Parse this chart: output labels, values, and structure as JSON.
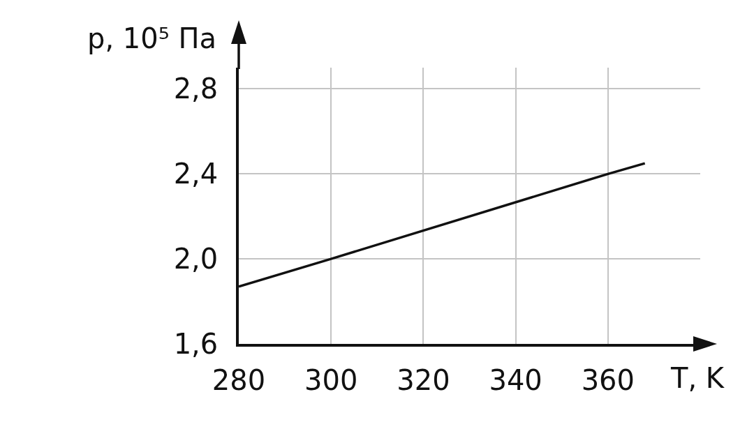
{
  "chart_data": {
    "type": "line",
    "xlabel": "T, K",
    "ylabel": "p, 10⁵ Па",
    "x": [
      280,
      300,
      360,
      368
    ],
    "series": [
      {
        "color": "#111111",
        "values": [
          1.87,
          2.0,
          2.4,
          2.45
        ]
      }
    ],
    "xlim": [
      280,
      380
    ],
    "ylim": [
      1.6,
      2.9
    ],
    "xticks": [
      280,
      300,
      320,
      340,
      360
    ],
    "yticks": [
      {
        "value": 1.6,
        "label": "1,6"
      },
      {
        "value": 2.0,
        "label": "2,0"
      },
      {
        "value": 2.4,
        "label": "2,4"
      },
      {
        "value": 2.8,
        "label": "2,8"
      }
    ],
    "grid": true,
    "marker": "none",
    "line_style": "solid"
  }
}
